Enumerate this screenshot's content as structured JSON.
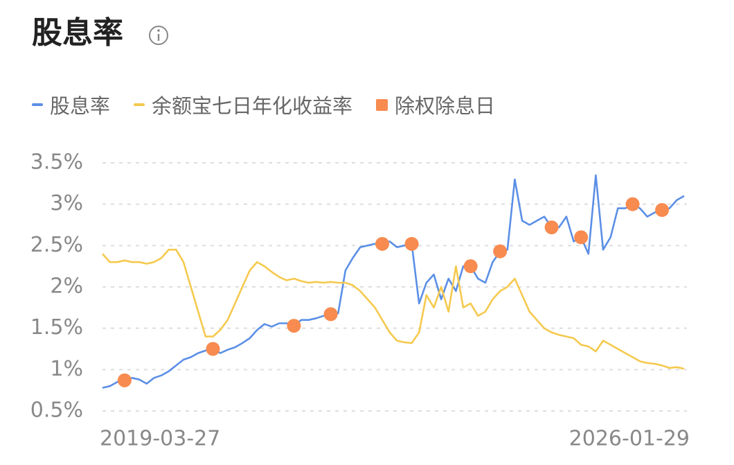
{
  "chart_data": {
    "type": "line",
    "title": "股息率",
    "categories": [
      "2019-03-27",
      null,
      null,
      null,
      null,
      null,
      null,
      null,
      null,
      null,
      null,
      null,
      null,
      null,
      null,
      null,
      null,
      null,
      null,
      null,
      null,
      null,
      null,
      null,
      null,
      null,
      null,
      null,
      null,
      null,
      null,
      null,
      null,
      null,
      null,
      null,
      null,
      null,
      null,
      null,
      null,
      null,
      null,
      null,
      null,
      null,
      null,
      null,
      null,
      null,
      null,
      null,
      null,
      null,
      null,
      null,
      null,
      null,
      null,
      null,
      null,
      null,
      null,
      null,
      null,
      null,
      null,
      null,
      null,
      null,
      null,
      null,
      null,
      null,
      null,
      null,
      null,
      null,
      null,
      "2026-01-29"
    ],
    "series": [
      {
        "name": "股息率",
        "type": "line",
        "color": "#5b8fe6",
        "values": [
          0.78,
          0.8,
          0.85,
          0.87,
          0.9,
          0.88,
          0.83,
          0.9,
          0.93,
          0.98,
          1.05,
          1.12,
          1.15,
          1.2,
          1.23,
          1.25,
          1.2,
          1.24,
          1.27,
          1.32,
          1.38,
          1.48,
          1.55,
          1.52,
          1.56,
          1.56,
          1.53,
          1.6,
          1.6,
          1.62,
          1.65,
          1.67,
          1.68,
          2.2,
          2.35,
          2.48,
          2.5,
          2.52,
          2.52,
          2.55,
          2.48,
          2.5,
          2.52,
          1.8,
          2.05,
          2.15,
          1.85,
          2.1,
          1.95,
          2.25,
          2.25,
          2.1,
          2.05,
          2.3,
          2.43,
          2.45,
          3.3,
          2.8,
          2.75,
          2.8,
          2.85,
          2.72,
          2.72,
          2.85,
          2.55,
          2.6,
          2.4,
          3.35,
          2.45,
          2.6,
          2.95,
          2.95,
          3.0,
          2.95,
          2.85,
          2.9,
          2.93,
          2.95,
          3.05,
          3.1
        ]
      },
      {
        "name": "余额宝七日年化收益率",
        "type": "line",
        "color": "#f5c94e",
        "values": [
          2.4,
          2.3,
          2.3,
          2.32,
          2.3,
          2.3,
          2.28,
          2.3,
          2.35,
          2.45,
          2.45,
          2.3,
          2.0,
          1.7,
          1.4,
          1.4,
          1.48,
          1.6,
          1.8,
          2.0,
          2.2,
          2.3,
          2.25,
          2.18,
          2.12,
          2.08,
          2.1,
          2.07,
          2.05,
          2.06,
          2.05,
          2.06,
          2.05,
          2.05,
          2.02,
          1.95,
          1.85,
          1.75,
          1.6,
          1.45,
          1.35,
          1.33,
          1.32,
          1.45,
          1.9,
          1.75,
          2.0,
          1.7,
          2.25,
          1.75,
          1.8,
          1.65,
          1.7,
          1.85,
          1.95,
          2.0,
          2.1,
          1.9,
          1.7,
          1.6,
          1.5,
          1.45,
          1.42,
          1.4,
          1.38,
          1.3,
          1.28,
          1.22,
          1.35,
          1.3,
          1.25,
          1.2,
          1.15,
          1.1,
          1.08,
          1.07,
          1.05,
          1.02,
          1.03,
          1.01
        ]
      },
      {
        "name": "除权除息日",
        "type": "scatter",
        "color": "#f78b50",
        "values": [
          null,
          null,
          null,
          0.87,
          null,
          null,
          null,
          null,
          null,
          null,
          null,
          null,
          null,
          null,
          null,
          1.25,
          null,
          null,
          null,
          null,
          null,
          null,
          null,
          null,
          null,
          null,
          1.53,
          null,
          null,
          null,
          null,
          1.67,
          null,
          null,
          null,
          null,
          null,
          null,
          2.52,
          null,
          null,
          null,
          2.52,
          null,
          null,
          null,
          null,
          null,
          null,
          null,
          2.25,
          null,
          null,
          null,
          2.43,
          null,
          null,
          null,
          null,
          null,
          null,
          2.72,
          null,
          null,
          null,
          2.6,
          null,
          null,
          null,
          null,
          null,
          null,
          3.0,
          null,
          null,
          null,
          2.93,
          null,
          null,
          null
        ]
      }
    ],
    "ylim": [
      0.5,
      3.5
    ],
    "yticks": [
      {
        "value": 0.5,
        "label": "0.5%"
      },
      {
        "value": 1,
        "label": "1%"
      },
      {
        "value": 1.5,
        "label": "1.5%"
      },
      {
        "value": 2,
        "label": "2%"
      },
      {
        "value": 2.5,
        "label": "2.5%"
      },
      {
        "value": 3,
        "label": "3%"
      },
      {
        "value": 3.5,
        "label": "3.5%"
      }
    ],
    "grid": true
  }
}
